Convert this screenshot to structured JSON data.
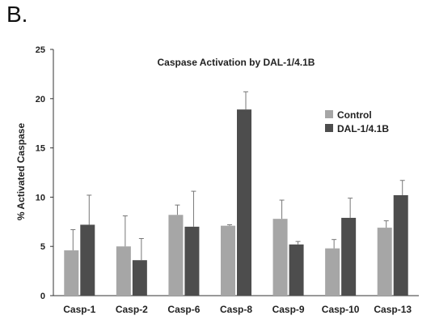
{
  "panel_label": "B.",
  "chart_data": {
    "type": "bar",
    "title": "Caspase Activation by DAL-1/4.1B",
    "xlabel": "",
    "ylabel": "% Activated Caspase",
    "ylim": [
      0,
      25
    ],
    "yticks": [
      0,
      5,
      10,
      15,
      20,
      25
    ],
    "categories": [
      "Casp-1",
      "Casp-2",
      "Casp-6",
      "Casp-8",
      "Casp-9",
      "Casp-10",
      "Casp-13"
    ],
    "series": [
      {
        "name": "Control",
        "color": "#a6a6a6",
        "values": [
          4.6,
          5.0,
          8.2,
          7.1,
          7.8,
          4.8,
          6.9
        ],
        "errors": [
          2.1,
          3.1,
          1.0,
          0.1,
          1.9,
          0.9,
          0.7
        ]
      },
      {
        "name": "DAL-1/4.1B",
        "color": "#4d4d4d",
        "values": [
          7.2,
          3.6,
          7.0,
          18.9,
          5.2,
          7.9,
          10.2
        ],
        "errors": [
          3.0,
          2.2,
          3.6,
          1.8,
          0.3,
          2.0,
          1.5
        ]
      }
    ],
    "legend_position": "right",
    "grid": false
  }
}
